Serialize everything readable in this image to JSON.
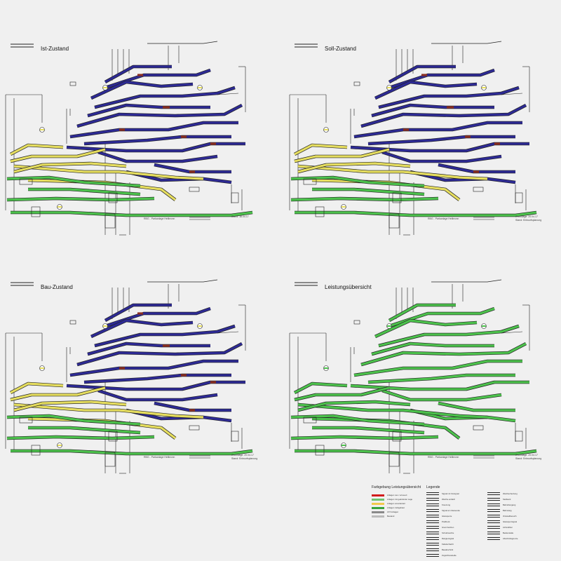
{
  "panels": [
    {
      "title": "Ist-Zustand",
      "footer": "RBG - Parkanlage Heilbronn",
      "stamp": [
        "Stand: 16.04.17"
      ],
      "mode": "ist"
    },
    {
      "title": "Soll-Zustand",
      "footer": "RBG - Parkanlage Heilbronn",
      "stamp": [
        "Grundlage: 20.04.17",
        "Stand: Entwurfsplanung"
      ],
      "mode": "soll"
    },
    {
      "title": "Bau-Zustand",
      "footer": "RBG - Parkanlage Heilbronn",
      "stamp": [
        "Grundlage: 20.04.17",
        "Stand: Entwurfsplanung"
      ],
      "mode": "bau"
    },
    {
      "title": "Leistungsübersicht",
      "footer": "RBG - Parkanlage Heilbronn",
      "stamp": [
        "Grundlage: 20.04.17",
        "Stand: Entwurfsplanung"
      ],
      "mode": "leistung"
    }
  ],
  "legend": {
    "color_title": "Farbgebung Leistungsübersicht",
    "title": "Legende",
    "color_items": [
      {
        "label": "Anlagen neu / erneuert",
        "color": "#d11d1d"
      },
      {
        "label": "Anlagen mit geänderter Lage",
        "color": "#6fc36f"
      },
      {
        "label": "Anlagen unverändert",
        "color": "#f2c94c"
      },
      {
        "label": "Anlagen rückgebaut",
        "color": "#37a33b"
      },
      {
        "label": "LST-Anlagen",
        "color": "#8a8a8a"
      },
      {
        "label": "Bestand",
        "color": "#bbbbbb"
      }
    ],
    "symbols_a": [
      "Signal mit Vorsignal",
      "Weiche einfach",
      "Kreuzung",
      "Signal am Gleisende",
      "Gleissperre",
      "Prellbock",
      "Grenzzeichen",
      "Schutzweiche",
      "Rangiersignal",
      "Kabelschacht",
      "Bauabschnitt",
      "Zugschlussstelle"
    ],
    "symbols_b": [
      "Weichenheizung",
      "Stellwerk",
      "Bahnübergang",
      "Bahnsteig",
      "Ortsstellbereich",
      "Gleissperrsignal",
      "Achszähler",
      "Bedienstelle",
      "Abschnittsgrenze"
    ]
  },
  "colors": {
    "blue_track": "#2d2a94",
    "yellow_track": "#e6de5f",
    "green_track": "#4cc24c",
    "red_segment": "#8a2f20",
    "line": "#222222"
  }
}
